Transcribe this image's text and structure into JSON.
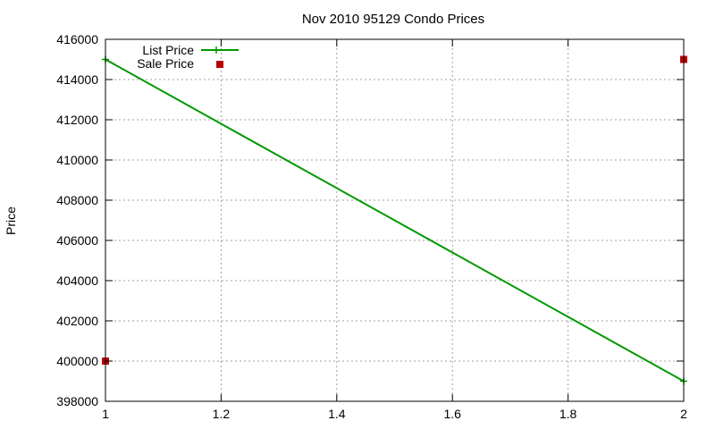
{
  "chart_data": {
    "type": "line",
    "title": "Nov 2010 95129 Condo Prices",
    "xlabel": "",
    "ylabel": "Price",
    "xlim": [
      1,
      2
    ],
    "ylim": [
      398000,
      416000
    ],
    "x_ticks": [
      1,
      1.2,
      1.4,
      1.6,
      1.8,
      2
    ],
    "y_ticks": [
      398000,
      400000,
      402000,
      404000,
      406000,
      408000,
      410000,
      412000,
      414000,
      416000
    ],
    "grid": true,
    "legend_position": "top-left",
    "series": [
      {
        "name": "List Price",
        "kind": "line",
        "color": "#009900",
        "points": [
          {
            "x": 1,
            "y": 415000
          },
          {
            "x": 2,
            "y": 399000
          }
        ]
      },
      {
        "name": "Sale Price",
        "kind": "points",
        "color": "#bb0000",
        "points": [
          {
            "x": 1,
            "y": 400000
          },
          {
            "x": 2,
            "y": 415000
          }
        ]
      }
    ]
  }
}
